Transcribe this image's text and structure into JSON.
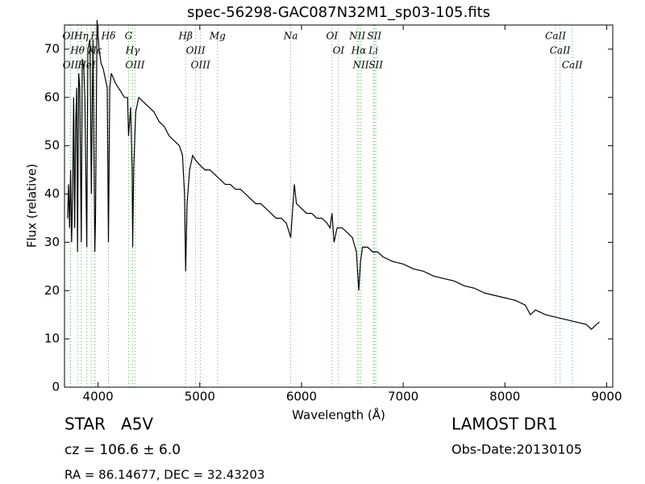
{
  "chart_data": {
    "type": "line",
    "title": "spec-56298-GAC087N32M1_sp03-105.fits",
    "xlabel": "Wavelength (Å)",
    "ylabel": "Flux (relative)",
    "xlim": [
      3670,
      9060
    ],
    "ylim": [
      0,
      75
    ],
    "xticks": [
      4000,
      5000,
      6000,
      7000,
      8000,
      9000
    ],
    "yticks": [
      0,
      10,
      20,
      30,
      40,
      50,
      60,
      70
    ],
    "grid": false,
    "series": [
      {
        "color": "#000000",
        "x": [
          3700,
          3710,
          3720,
          3730,
          3740,
          3750,
          3760,
          3770,
          3780,
          3790,
          3798,
          3810,
          3820,
          3835,
          3845,
          3860,
          3870,
          3889,
          3900,
          3920,
          3934,
          3950,
          3968,
          3975,
          3990,
          4010,
          4030,
          4050,
          4070,
          4090,
          4102,
          4115,
          4130,
          4150,
          4170,
          4200,
          4230,
          4260,
          4290,
          4300,
          4320,
          4335,
          4340,
          4350,
          4370,
          4400,
          4450,
          4500,
          4550,
          4600,
          4650,
          4700,
          4750,
          4800,
          4830,
          4850,
          4861,
          4875,
          4900,
          4930,
          4960,
          5000,
          5050,
          5100,
          5150,
          5200,
          5250,
          5300,
          5350,
          5400,
          5450,
          5500,
          5550,
          5600,
          5650,
          5700,
          5750,
          5800,
          5850,
          5880,
          5894,
          5910,
          5930,
          5950,
          6000,
          6050,
          6100,
          6150,
          6200,
          6250,
          6280,
          6300,
          6320,
          6350,
          6400,
          6450,
          6500,
          6540,
          6563,
          6580,
          6600,
          6650,
          6700,
          6750,
          6800,
          6900,
          7000,
          7100,
          7200,
          7300,
          7400,
          7500,
          7600,
          7700,
          7800,
          7900,
          8000,
          8100,
          8200,
          8250,
          8300,
          8400,
          8500,
          8600,
          8700,
          8800,
          8850,
          8900,
          8930
        ],
        "values": [
          35,
          42,
          33,
          45,
          30,
          40,
          60,
          33,
          55,
          62,
          28,
          65,
          62,
          30,
          68,
          66,
          60,
          29,
          70,
          72,
          40,
          72,
          28,
          35,
          76,
          70,
          67,
          66,
          64,
          62,
          30,
          62,
          65,
          64,
          63,
          62,
          61,
          60,
          60,
          52,
          58,
          45,
          29,
          45,
          57,
          60,
          59,
          58,
          57,
          55,
          54,
          52,
          51,
          50,
          48,
          40,
          24,
          38,
          45,
          48,
          47,
          46,
          45,
          45,
          44,
          43,
          42,
          42,
          41,
          41,
          40,
          39,
          38,
          38,
          37,
          36,
          35,
          35,
          34,
          32,
          31,
          36,
          42,
          38,
          37,
          36,
          36,
          35,
          35,
          34,
          33,
          36,
          30,
          33,
          33,
          32,
          31,
          28,
          20,
          26,
          29,
          29,
          28,
          28,
          27,
          26,
          25.5,
          24.5,
          24,
          23,
          22.5,
          22,
          21,
          20.5,
          19.5,
          19,
          18.5,
          18,
          17,
          15,
          16,
          15,
          14.5,
          14,
          13.5,
          13,
          12,
          13,
          13.5
        ]
      }
    ],
    "marker_color": "#5cb85c",
    "spectral_lines": [
      {
        "label": "OII",
        "wavelength": 3727
      },
      {
        "label": "Hθ",
        "wavelength": 3798
      },
      {
        "label": "OII",
        "wavelength": 3729
      },
      {
        "label": "Hη",
        "wavelength": 3835
      },
      {
        "label": "HeI",
        "wavelength": 3889
      },
      {
        "label": "K",
        "wavelength": 3934
      },
      {
        "label": "H",
        "wavelength": 3968
      },
      {
        "label": "Hε",
        "wavelength": 3970
      },
      {
        "label": "Hδ",
        "wavelength": 4102
      },
      {
        "label": "G",
        "wavelength": 4300
      },
      {
        "label": "Hγ",
        "wavelength": 4340
      },
      {
        "label": "OIII",
        "wavelength": 4363
      },
      {
        "label": "Hβ",
        "wavelength": 4861
      },
      {
        "label": "OIII",
        "wavelength": 4959
      },
      {
        "label": "OIII",
        "wavelength": 5007
      },
      {
        "label": "Mg",
        "wavelength": 5175
      },
      {
        "label": "Na",
        "wavelength": 5894
      },
      {
        "label": "OI",
        "wavelength": 6300
      },
      {
        "label": "OI",
        "wavelength": 6364
      },
      {
        "label": "NII",
        "wavelength": 6548
      },
      {
        "label": "Hα",
        "wavelength": 6563
      },
      {
        "label": "NII",
        "wavelength": 6583
      },
      {
        "label": "Li",
        "wavelength": 6707
      },
      {
        "label": "SII",
        "wavelength": 6716
      },
      {
        "label": "SII",
        "wavelength": 6731
      },
      {
        "label": "CaII",
        "wavelength": 8498
      },
      {
        "label": "CaII",
        "wavelength": 8542
      },
      {
        "label": "CaII",
        "wavelength": 8662
      }
    ],
    "annotations": [
      "STAR   A5V",
      "cz = 106.6 ± 6.0",
      "RA = 86.14677, DEC = 32.43203",
      "LAMOST DR1",
      "Obs-Date:20130105"
    ]
  }
}
